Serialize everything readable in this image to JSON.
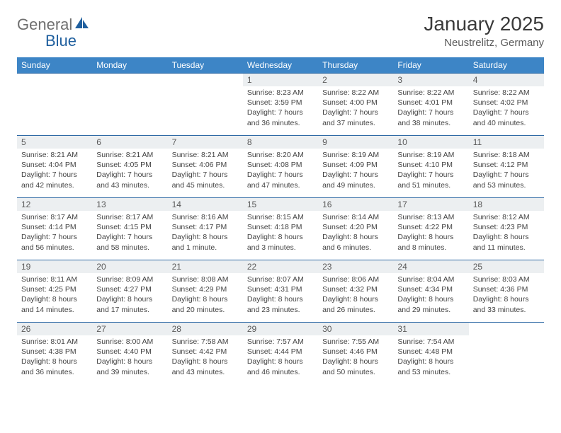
{
  "logo": {
    "text1": "General",
    "text2": "Blue"
  },
  "title": "January 2025",
  "subtitle": "Neustrelitz, Germany",
  "colors": {
    "header_bg": "#3d85c6",
    "header_fg": "#ffffff",
    "row_border": "#2f6aa5",
    "daynum_bg": "#eceff1",
    "logo_gray": "#6f6f6f",
    "logo_blue": "#1f5f9e"
  },
  "weekdays": [
    "Sunday",
    "Monday",
    "Tuesday",
    "Wednesday",
    "Thursday",
    "Friday",
    "Saturday"
  ],
  "weeks": [
    [
      {
        "day": "",
        "lines": []
      },
      {
        "day": "",
        "lines": []
      },
      {
        "day": "",
        "lines": []
      },
      {
        "day": "1",
        "lines": [
          "Sunrise: 8:23 AM",
          "Sunset: 3:59 PM",
          "Daylight: 7 hours and 36 minutes."
        ]
      },
      {
        "day": "2",
        "lines": [
          "Sunrise: 8:22 AM",
          "Sunset: 4:00 PM",
          "Daylight: 7 hours and 37 minutes."
        ]
      },
      {
        "day": "3",
        "lines": [
          "Sunrise: 8:22 AM",
          "Sunset: 4:01 PM",
          "Daylight: 7 hours and 38 minutes."
        ]
      },
      {
        "day": "4",
        "lines": [
          "Sunrise: 8:22 AM",
          "Sunset: 4:02 PM",
          "Daylight: 7 hours and 40 minutes."
        ]
      }
    ],
    [
      {
        "day": "5",
        "lines": [
          "Sunrise: 8:21 AM",
          "Sunset: 4:04 PM",
          "Daylight: 7 hours and 42 minutes."
        ]
      },
      {
        "day": "6",
        "lines": [
          "Sunrise: 8:21 AM",
          "Sunset: 4:05 PM",
          "Daylight: 7 hours and 43 minutes."
        ]
      },
      {
        "day": "7",
        "lines": [
          "Sunrise: 8:21 AM",
          "Sunset: 4:06 PM",
          "Daylight: 7 hours and 45 minutes."
        ]
      },
      {
        "day": "8",
        "lines": [
          "Sunrise: 8:20 AM",
          "Sunset: 4:08 PM",
          "Daylight: 7 hours and 47 minutes."
        ]
      },
      {
        "day": "9",
        "lines": [
          "Sunrise: 8:19 AM",
          "Sunset: 4:09 PM",
          "Daylight: 7 hours and 49 minutes."
        ]
      },
      {
        "day": "10",
        "lines": [
          "Sunrise: 8:19 AM",
          "Sunset: 4:10 PM",
          "Daylight: 7 hours and 51 minutes."
        ]
      },
      {
        "day": "11",
        "lines": [
          "Sunrise: 8:18 AM",
          "Sunset: 4:12 PM",
          "Daylight: 7 hours and 53 minutes."
        ]
      }
    ],
    [
      {
        "day": "12",
        "lines": [
          "Sunrise: 8:17 AM",
          "Sunset: 4:14 PM",
          "Daylight: 7 hours and 56 minutes."
        ]
      },
      {
        "day": "13",
        "lines": [
          "Sunrise: 8:17 AM",
          "Sunset: 4:15 PM",
          "Daylight: 7 hours and 58 minutes."
        ]
      },
      {
        "day": "14",
        "lines": [
          "Sunrise: 8:16 AM",
          "Sunset: 4:17 PM",
          "Daylight: 8 hours and 1 minute."
        ]
      },
      {
        "day": "15",
        "lines": [
          "Sunrise: 8:15 AM",
          "Sunset: 4:18 PM",
          "Daylight: 8 hours and 3 minutes."
        ]
      },
      {
        "day": "16",
        "lines": [
          "Sunrise: 8:14 AM",
          "Sunset: 4:20 PM",
          "Daylight: 8 hours and 6 minutes."
        ]
      },
      {
        "day": "17",
        "lines": [
          "Sunrise: 8:13 AM",
          "Sunset: 4:22 PM",
          "Daylight: 8 hours and 8 minutes."
        ]
      },
      {
        "day": "18",
        "lines": [
          "Sunrise: 8:12 AM",
          "Sunset: 4:23 PM",
          "Daylight: 8 hours and 11 minutes."
        ]
      }
    ],
    [
      {
        "day": "19",
        "lines": [
          "Sunrise: 8:11 AM",
          "Sunset: 4:25 PM",
          "Daylight: 8 hours and 14 minutes."
        ]
      },
      {
        "day": "20",
        "lines": [
          "Sunrise: 8:09 AM",
          "Sunset: 4:27 PM",
          "Daylight: 8 hours and 17 minutes."
        ]
      },
      {
        "day": "21",
        "lines": [
          "Sunrise: 8:08 AM",
          "Sunset: 4:29 PM",
          "Daylight: 8 hours and 20 minutes."
        ]
      },
      {
        "day": "22",
        "lines": [
          "Sunrise: 8:07 AM",
          "Sunset: 4:31 PM",
          "Daylight: 8 hours and 23 minutes."
        ]
      },
      {
        "day": "23",
        "lines": [
          "Sunrise: 8:06 AM",
          "Sunset: 4:32 PM",
          "Daylight: 8 hours and 26 minutes."
        ]
      },
      {
        "day": "24",
        "lines": [
          "Sunrise: 8:04 AM",
          "Sunset: 4:34 PM",
          "Daylight: 8 hours and 29 minutes."
        ]
      },
      {
        "day": "25",
        "lines": [
          "Sunrise: 8:03 AM",
          "Sunset: 4:36 PM",
          "Daylight: 8 hours and 33 minutes."
        ]
      }
    ],
    [
      {
        "day": "26",
        "lines": [
          "Sunrise: 8:01 AM",
          "Sunset: 4:38 PM",
          "Daylight: 8 hours and 36 minutes."
        ]
      },
      {
        "day": "27",
        "lines": [
          "Sunrise: 8:00 AM",
          "Sunset: 4:40 PM",
          "Daylight: 8 hours and 39 minutes."
        ]
      },
      {
        "day": "28",
        "lines": [
          "Sunrise: 7:58 AM",
          "Sunset: 4:42 PM",
          "Daylight: 8 hours and 43 minutes."
        ]
      },
      {
        "day": "29",
        "lines": [
          "Sunrise: 7:57 AM",
          "Sunset: 4:44 PM",
          "Daylight: 8 hours and 46 minutes."
        ]
      },
      {
        "day": "30",
        "lines": [
          "Sunrise: 7:55 AM",
          "Sunset: 4:46 PM",
          "Daylight: 8 hours and 50 minutes."
        ]
      },
      {
        "day": "31",
        "lines": [
          "Sunrise: 7:54 AM",
          "Sunset: 4:48 PM",
          "Daylight: 8 hours and 53 minutes."
        ]
      },
      {
        "day": "",
        "lines": []
      }
    ]
  ]
}
